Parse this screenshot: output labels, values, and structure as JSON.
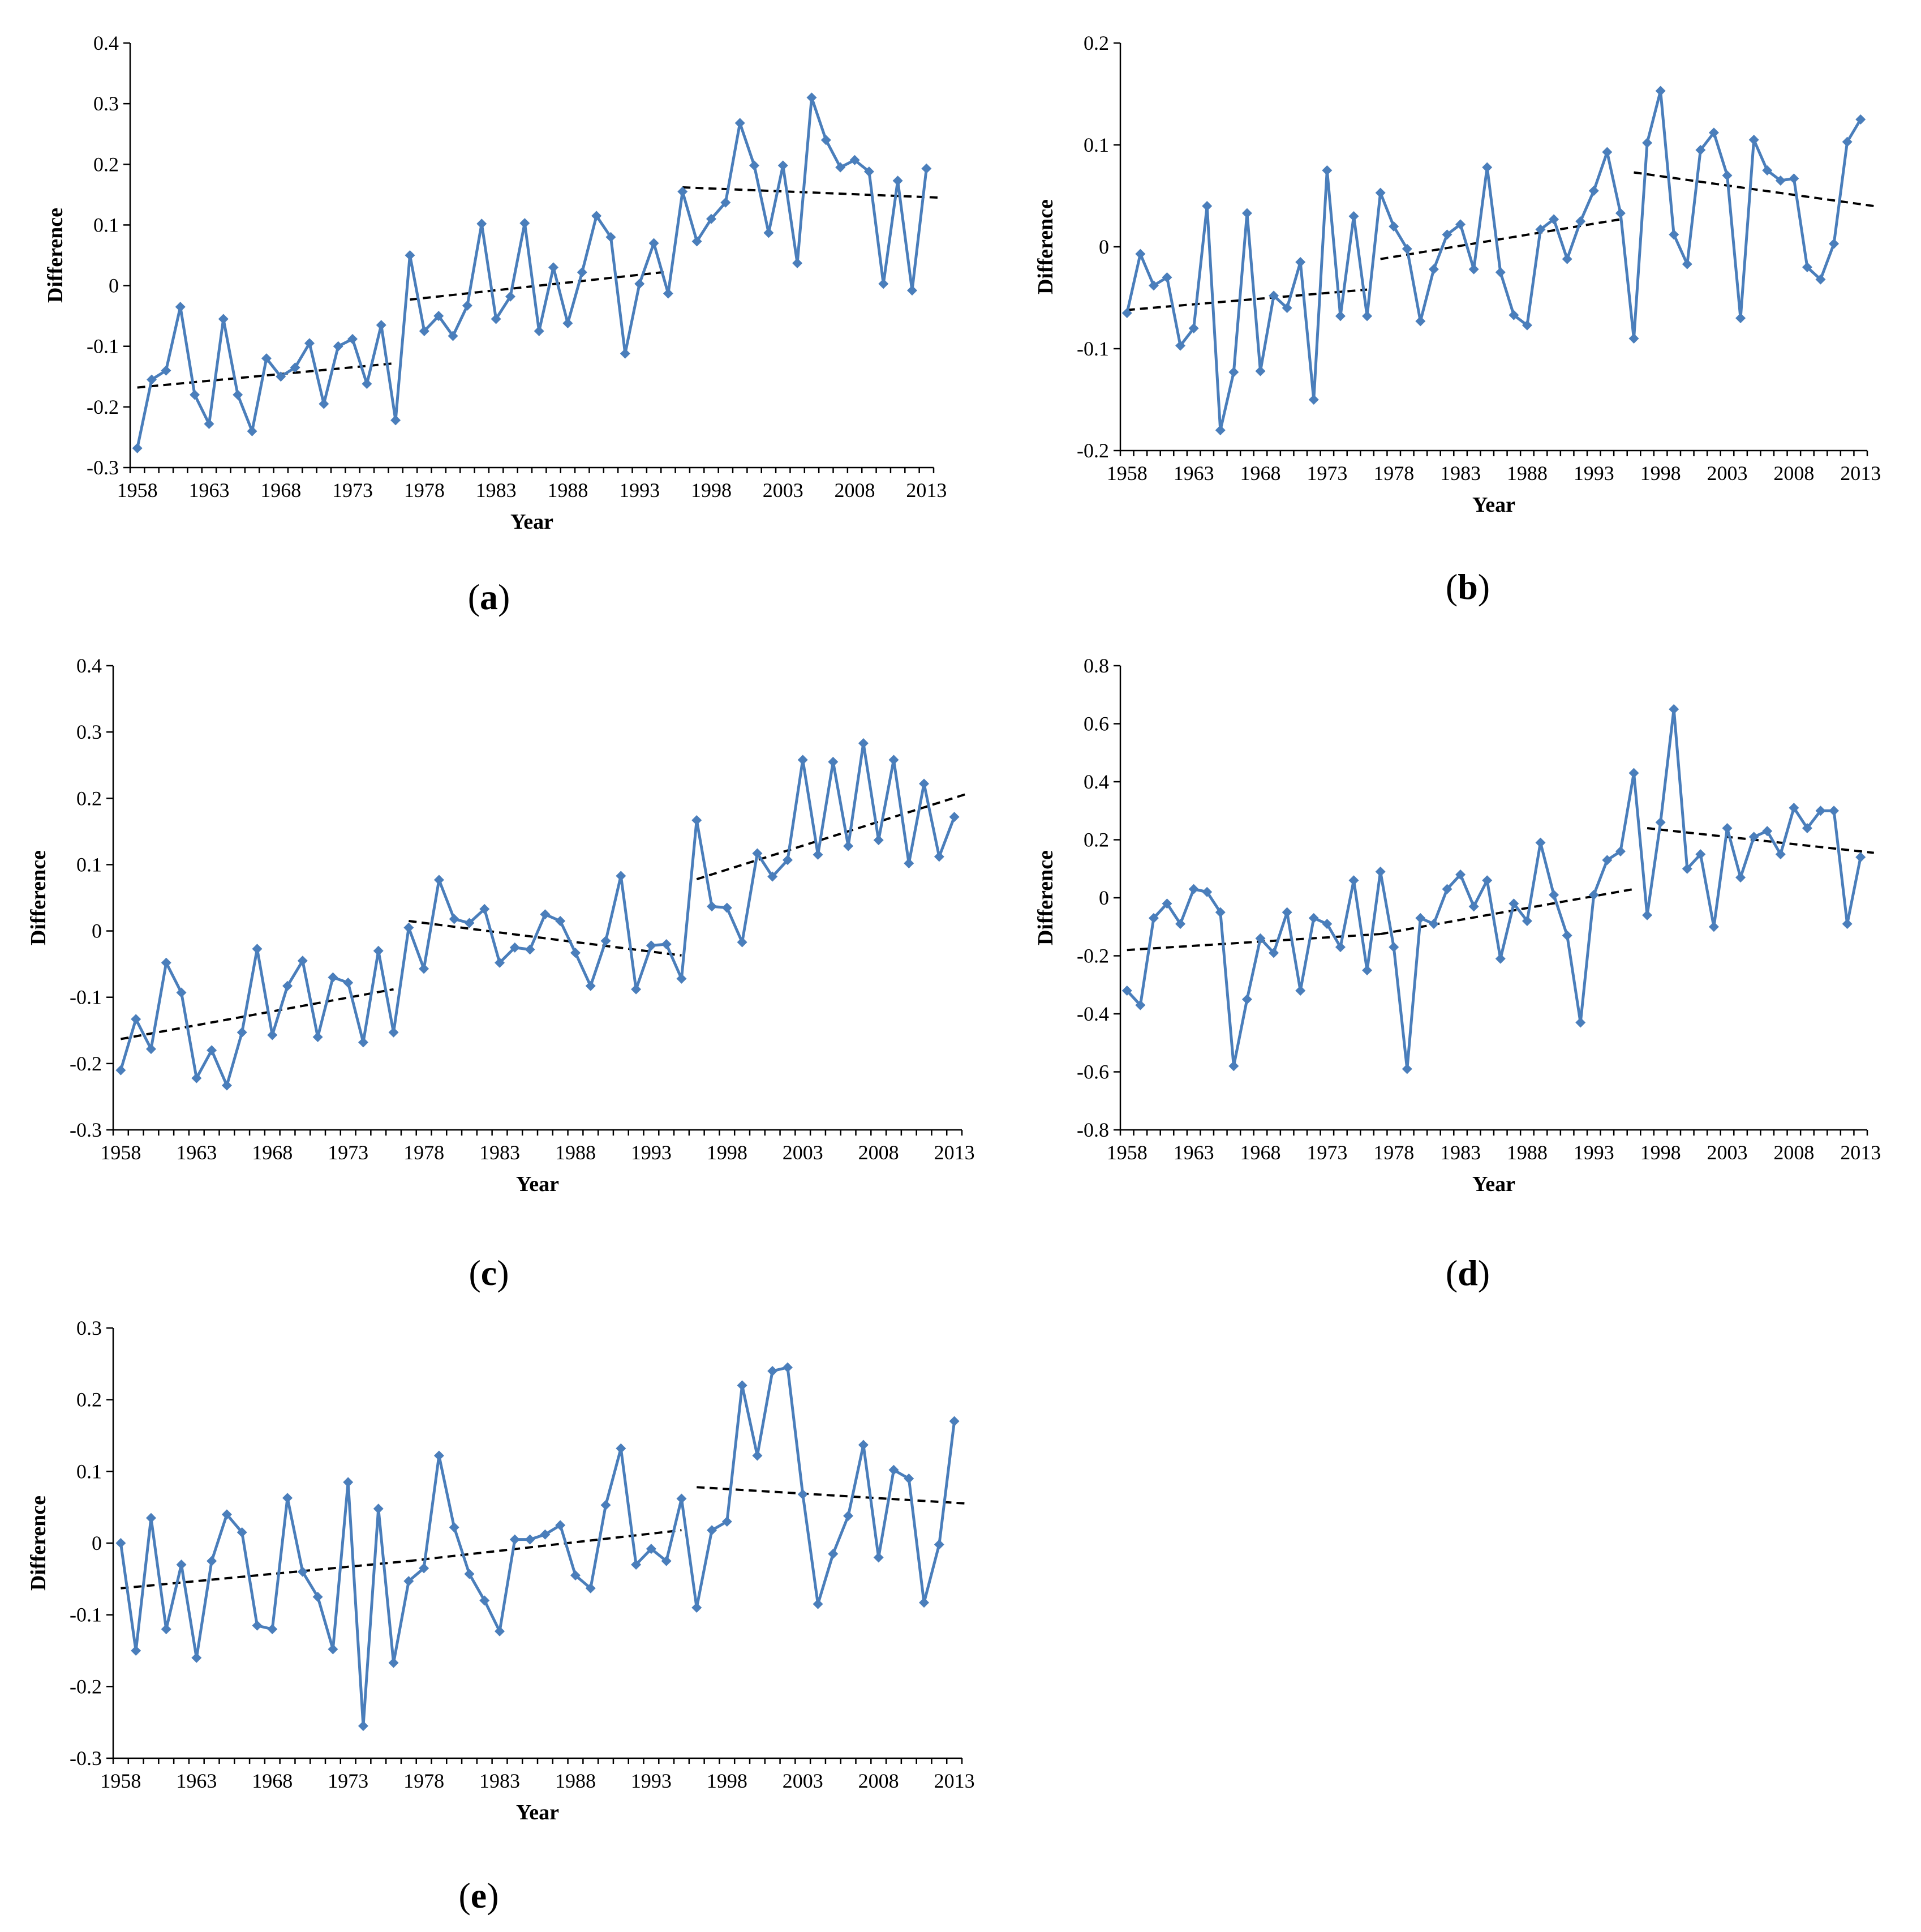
{
  "colors": {
    "series": "#4a7ebb",
    "trend": "#000000",
    "axis": "#000000"
  },
  "chart_data": [
    {
      "id": "a",
      "caption_open": "(",
      "caption_letter": "a",
      "caption_close": ")",
      "type": "line",
      "xlabel": "Year",
      "ylabel": "Difference",
      "ylim": [
        -0.3,
        0.4
      ],
      "yticks": [
        "-0.3",
        "-0.2",
        "-0.1",
        "0",
        "0.1",
        "0.2",
        "0.3",
        "0.4"
      ],
      "xticks": [
        "1958",
        "1963",
        "1968",
        "1973",
        "1978",
        "1983",
        "1988",
        "1993",
        "1998",
        "2003",
        "2008",
        "2013"
      ],
      "start_year": 1958,
      "values": [
        -0.268,
        -0.155,
        -0.14,
        -0.035,
        -0.18,
        -0.228,
        -0.055,
        -0.18,
        -0.24,
        -0.12,
        -0.15,
        -0.135,
        -0.095,
        -0.195,
        -0.1,
        -0.088,
        -0.162,
        -0.065,
        -0.222,
        0.05,
        -0.075,
        -0.05,
        -0.083,
        -0.033,
        0.102,
        -0.055,
        -0.018,
        0.103,
        -0.075,
        0.03,
        -0.062,
        0.022,
        0.115,
        0.08,
        -0.112,
        0.003,
        0.07,
        -0.013,
        0.155,
        0.073,
        0.11,
        0.137,
        0.268,
        0.198,
        0.087,
        0.198,
        0.037,
        0.31,
        0.24,
        0.195,
        0.207,
        0.188,
        0.003,
        0.173,
        -0.008,
        0.193
      ],
      "trends": [
        {
          "x": [
            1958,
            1976
          ],
          "y": [
            -0.168,
            -0.128
          ]
        },
        {
          "x": [
            1977,
            1995
          ],
          "y": [
            -0.023,
            0.023
          ]
        },
        {
          "x": [
            1996,
            2014
          ],
          "y": [
            0.162,
            0.145
          ]
        }
      ]
    },
    {
      "id": "b",
      "caption_open": "(",
      "caption_letter": "b",
      "caption_close": ")",
      "type": "line",
      "xlabel": "Year",
      "ylabel": "Difference",
      "ylim": [
        -0.2,
        0.2
      ],
      "yticks": [
        "-0.2",
        "-0.1",
        "0",
        "0.1",
        "0.2"
      ],
      "xticks": [
        "1958",
        "1963",
        "1968",
        "1973",
        "1978",
        "1983",
        "1988",
        "1993",
        "1998",
        "2003",
        "2008",
        "2013"
      ],
      "start_year": 1958,
      "values": [
        -0.065,
        -0.007,
        -0.038,
        -0.03,
        -0.097,
        -0.08,
        0.04,
        -0.18,
        -0.123,
        0.033,
        -0.122,
        -0.048,
        -0.06,
        -0.015,
        -0.15,
        0.075,
        -0.068,
        0.03,
        -0.068,
        0.053,
        0.02,
        -0.002,
        -0.073,
        -0.022,
        0.012,
        0.022,
        -0.022,
        0.078,
        -0.025,
        -0.067,
        -0.077,
        0.017,
        0.027,
        -0.012,
        0.025,
        0.055,
        0.093,
        0.033,
        -0.09,
        0.102,
        0.153,
        0.012,
        -0.017,
        0.095,
        0.112,
        0.07,
        -0.07,
        0.105,
        0.075,
        0.065,
        0.067,
        -0.02,
        -0.032,
        0.003,
        0.103,
        0.125
      ],
      "trends": [
        {
          "x": [
            1958,
            1976
          ],
          "y": [
            -0.062,
            -0.042
          ]
        },
        {
          "x": [
            1977,
            1995
          ],
          "y": [
            -0.012,
            0.027
          ]
        },
        {
          "x": [
            1996,
            2014
          ],
          "y": [
            0.073,
            0.04
          ]
        }
      ]
    },
    {
      "id": "c",
      "caption_open": "(",
      "caption_letter": "c",
      "caption_close": ")",
      "type": "line",
      "xlabel": "Year",
      "ylabel": "Difference",
      "ylim": [
        -0.3,
        0.4
      ],
      "yticks": [
        "-0.3",
        "-0.2",
        "-0.1",
        "0",
        "0.1",
        "0.2",
        "0.3",
        "0.4"
      ],
      "xticks": [
        "1958",
        "1963",
        "1968",
        "1973",
        "1978",
        "1983",
        "1988",
        "1993",
        "1998",
        "2003",
        "2008",
        "2013"
      ],
      "start_year": 1958,
      "values": [
        -0.21,
        -0.133,
        -0.178,
        -0.048,
        -0.093,
        -0.222,
        -0.18,
        -0.233,
        -0.153,
        -0.027,
        -0.157,
        -0.083,
        -0.045,
        -0.16,
        -0.07,
        -0.078,
        -0.168,
        -0.03,
        -0.153,
        0.005,
        -0.057,
        0.077,
        0.018,
        0.012,
        0.033,
        -0.048,
        -0.025,
        -0.028,
        0.025,
        0.015,
        -0.033,
        -0.083,
        -0.015,
        0.083,
        -0.088,
        -0.022,
        -0.02,
        -0.072,
        0.167,
        0.037,
        0.035,
        -0.017,
        0.117,
        0.082,
        0.107,
        0.258,
        0.115,
        0.255,
        0.128,
        0.283,
        0.137,
        0.258,
        0.102,
        0.222,
        0.112,
        0.172
      ],
      "trends": [
        {
          "x": [
            1958,
            1976
          ],
          "y": [
            -0.163,
            -0.088
          ]
        },
        {
          "x": [
            1977,
            1995
          ],
          "y": [
            0.015,
            -0.037
          ]
        },
        {
          "x": [
            1996,
            2014
          ],
          "y": [
            0.078,
            0.208
          ]
        }
      ]
    },
    {
      "id": "d",
      "caption_open": "(",
      "caption_letter": "d",
      "caption_close": ")",
      "type": "line",
      "xlabel": "Year",
      "ylabel": "Difference",
      "ylim": [
        -0.8,
        0.8
      ],
      "yticks": [
        "-0.8",
        "-0.6",
        "-0.4",
        "-0.2",
        "0",
        "0.2",
        "0.4",
        "0.6",
        "0.8"
      ],
      "xticks": [
        "1958",
        "1963",
        "1968",
        "1973",
        "1978",
        "1983",
        "1988",
        "1993",
        "1998",
        "2003",
        "2008",
        "2013"
      ],
      "start_year": 1958,
      "values": [
        -0.32,
        -0.37,
        -0.07,
        -0.02,
        -0.09,
        0.03,
        0.02,
        -0.05,
        -0.58,
        -0.35,
        -0.14,
        -0.19,
        -0.05,
        -0.32,
        -0.07,
        -0.09,
        -0.17,
        0.06,
        -0.25,
        0.09,
        -0.17,
        -0.59,
        -0.07,
        -0.09,
        0.03,
        0.08,
        -0.03,
        0.06,
        -0.21,
        -0.02,
        -0.08,
        0.19,
        0.01,
        -0.13,
        -0.43,
        0.01,
        0.13,
        0.16,
        0.43,
        -0.06,
        0.26,
        0.65,
        0.1,
        0.15,
        -0.1,
        0.24,
        0.07,
        0.21,
        0.23,
        0.15,
        0.31,
        0.24,
        0.3,
        0.3,
        -0.09,
        0.14
      ],
      "trends": [
        {
          "x": [
            1958,
            1977
          ],
          "y": [
            -0.18,
            -0.125
          ]
        },
        {
          "x": [
            1977,
            1996
          ],
          "y": [
            -0.125,
            0.03
          ]
        },
        {
          "x": [
            1997,
            2014
          ],
          "y": [
            0.24,
            0.155
          ]
        }
      ]
    },
    {
      "id": "e",
      "caption_open": "(",
      "caption_letter": "e",
      "caption_close": ")",
      "type": "line",
      "xlabel": "Year",
      "ylabel": "Difference",
      "ylim": [
        -0.3,
        0.3
      ],
      "yticks": [
        "-0.3",
        "-0.2",
        "-0.1",
        "0",
        "0.1",
        "0.2",
        "0.3"
      ],
      "xticks": [
        "1958",
        "1963",
        "1968",
        "1973",
        "1978",
        "1983",
        "1988",
        "1993",
        "1998",
        "2003",
        "2008",
        "2013"
      ],
      "start_year": 1958,
      "values": [
        0.0,
        -0.15,
        0.035,
        -0.12,
        -0.03,
        -0.16,
        -0.025,
        0.04,
        0.015,
        -0.115,
        -0.12,
        0.063,
        -0.04,
        -0.075,
        -0.148,
        0.085,
        -0.255,
        0.048,
        -0.167,
        -0.053,
        -0.035,
        0.122,
        0.022,
        -0.043,
        -0.08,
        -0.123,
        0.005,
        0.005,
        0.012,
        0.025,
        -0.045,
        -0.063,
        0.053,
        0.132,
        -0.03,
        -0.008,
        -0.025,
        0.062,
        -0.09,
        0.018,
        0.03,
        0.22,
        0.122,
        0.24,
        0.245,
        0.068,
        -0.085,
        -0.015,
        0.038,
        0.137,
        -0.02,
        0.102,
        0.09,
        -0.083,
        -0.002,
        0.17
      ],
      "trends": [
        {
          "x": [
            1958,
            1977
          ],
          "y": [
            -0.063,
            -0.025
          ]
        },
        {
          "x": [
            1977,
            1995
          ],
          "y": [
            -0.025,
            0.018
          ]
        },
        {
          "x": [
            1996,
            2014
          ],
          "y": [
            0.078,
            0.055
          ]
        }
      ]
    }
  ]
}
